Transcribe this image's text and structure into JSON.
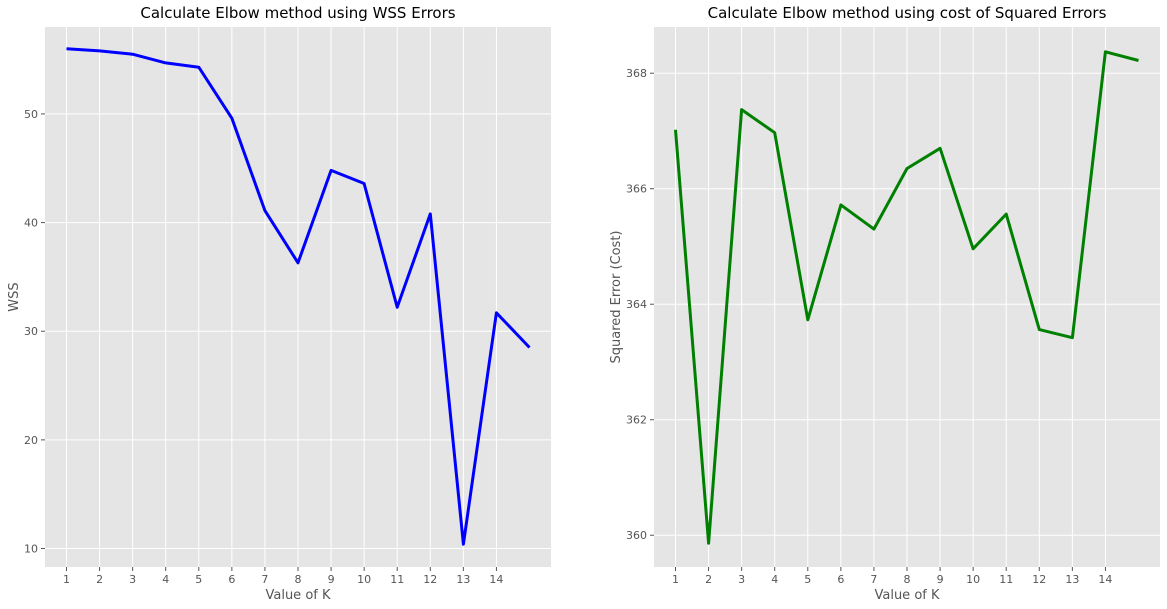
{
  "chart_data": [
    {
      "type": "line",
      "title": "Calculate Elbow method using WSS Errors",
      "xlabel": "Value of K",
      "ylabel": "WSS",
      "xlim": [
        0.35,
        15.65
      ],
      "ylim": [
        8.3,
        58.0
      ],
      "xticks": [
        1,
        2,
        3,
        4,
        5,
        6,
        7,
        8,
        9,
        10,
        11,
        12,
        13,
        14
      ],
      "yticks": [
        10,
        20,
        30,
        40,
        50
      ],
      "grid": true,
      "color": "#0000ff",
      "series": [
        {
          "x": [
            1,
            2,
            3,
            4,
            5,
            6,
            7,
            8,
            9,
            10,
            11,
            12,
            13,
            14,
            15
          ],
          "values": [
            56.0,
            55.8,
            55.5,
            54.7,
            54.3,
            49.6,
            41.1,
            36.3,
            44.8,
            43.6,
            32.2,
            40.8,
            10.4,
            31.7,
            28.5
          ]
        }
      ]
    },
    {
      "type": "line",
      "title": "Calculate Elbow method using cost of Squared Errors",
      "xlabel": "Value of K",
      "ylabel": "Squared Error (Cost)",
      "xlim": [
        0.35,
        15.65
      ],
      "ylim": [
        359.45,
        368.8
      ],
      "xticks": [
        1,
        2,
        3,
        4,
        5,
        6,
        7,
        8,
        9,
        10,
        11,
        12,
        13,
        14
      ],
      "yticks": [
        360,
        362,
        364,
        366,
        368
      ],
      "grid": true,
      "color": "#008000",
      "series": [
        {
          "x": [
            1,
            2,
            3,
            4,
            5,
            6,
            7,
            8,
            9,
            10,
            11,
            12,
            13,
            14,
            15
          ],
          "values": [
            367.02,
            359.86,
            367.37,
            366.97,
            363.73,
            365.72,
            365.3,
            366.35,
            366.7,
            364.96,
            365.56,
            363.56,
            363.42,
            368.37,
            368.22
          ]
        }
      ]
    }
  ]
}
